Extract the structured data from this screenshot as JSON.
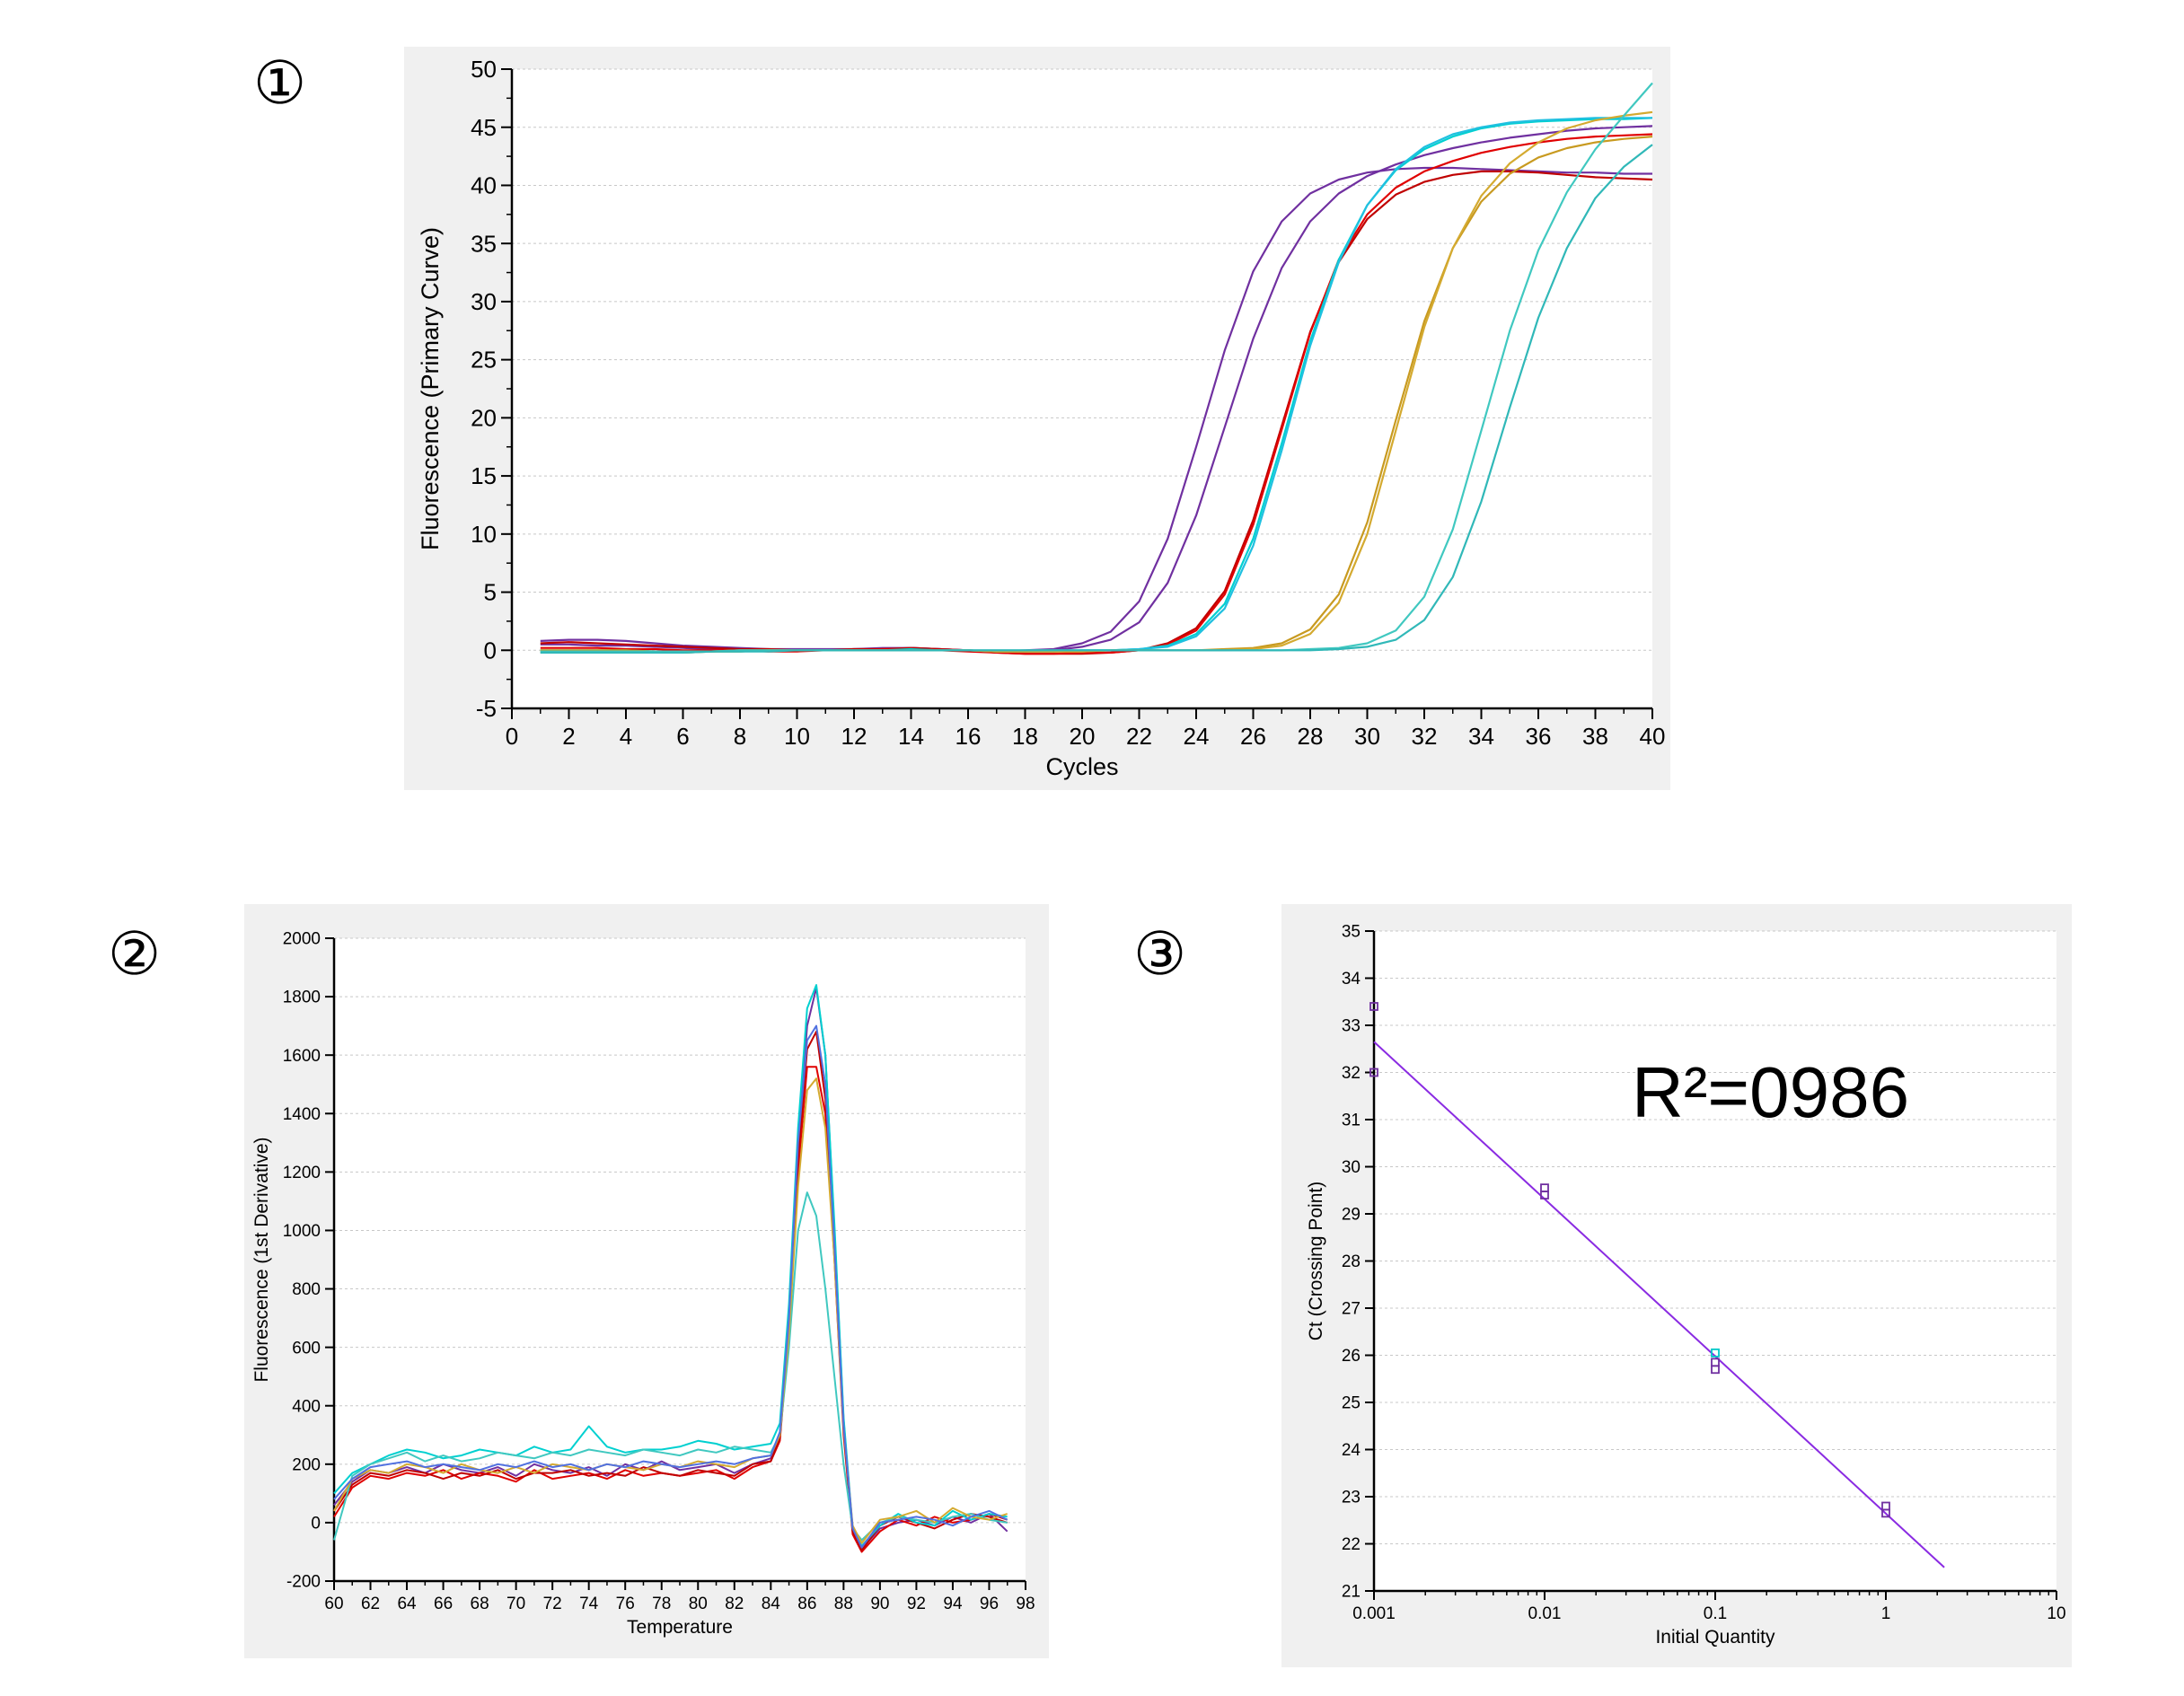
{
  "panels": [
    {
      "number": "①"
    },
    {
      "number": "②"
    },
    {
      "number": "③"
    }
  ],
  "chart_data": [
    {
      "type": "line",
      "title": "",
      "xlabel": "Cycles",
      "ylabel": "Fluorescence (Primary Curve)",
      "xlim": [
        0,
        40
      ],
      "ylim": [
        -5,
        50
      ],
      "xticks": [
        0,
        2,
        4,
        6,
        8,
        10,
        12,
        14,
        16,
        18,
        20,
        22,
        24,
        26,
        28,
        30,
        32,
        34,
        36,
        38,
        40
      ],
      "yticks": [
        -5,
        0,
        5,
        10,
        15,
        20,
        25,
        30,
        35,
        40,
        45,
        50
      ],
      "grid": true,
      "x": [
        1,
        2,
        3,
        4,
        5,
        6,
        7,
        8,
        9,
        10,
        11,
        12,
        13,
        14,
        15,
        16,
        17,
        18,
        19,
        20,
        21,
        22,
        23,
        24,
        25,
        26,
        27,
        28,
        29,
        30,
        31,
        32,
        33,
        34,
        35,
        36,
        37,
        38,
        39,
        40
      ],
      "series": [
        {
          "color": "#7030a0",
          "values": [
            0.8,
            0.9,
            0.9,
            0.8,
            0.6,
            0.4,
            0.3,
            0.2,
            0.1,
            0.1,
            0.1,
            0.1,
            0.2,
            0.2,
            0.1,
            0,
            -0.1,
            0,
            0.1,
            0.6,
            1.6,
            4.2,
            9.6,
            17.5,
            25.8,
            32.6,
            36.9,
            39.3,
            40.5,
            41.1,
            41.4,
            41.5,
            41.5,
            41.4,
            41.3,
            41.2,
            41.1,
            41.1,
            41.0,
            41.0
          ]
        },
        {
          "color": "#7030a0",
          "values": [
            0.5,
            0.5,
            0.4,
            0.4,
            0.3,
            0.2,
            0.1,
            0.1,
            0,
            0,
            0,
            0.1,
            0.1,
            0.2,
            0.1,
            0,
            -0.2,
            -0.1,
            0,
            0.3,
            0.9,
            2.4,
            5.8,
            11.6,
            19.2,
            26.8,
            32.9,
            36.9,
            39.3,
            40.8,
            41.8,
            42.6,
            43.2,
            43.7,
            44.1,
            44.4,
            44.7,
            44.9,
            45.0,
            45.1
          ]
        },
        {
          "color": "#c00000",
          "values": [
            0.6,
            0.7,
            0.6,
            0.5,
            0.4,
            0.3,
            0.2,
            0.1,
            0.1,
            0,
            0,
            0.1,
            0.1,
            0.2,
            0.1,
            0,
            -0.2,
            -0.3,
            -0.3,
            -0.3,
            -0.2,
            0,
            0.6,
            1.9,
            5.1,
            11.2,
            19.3,
            27.4,
            33.4,
            37.1,
            39.2,
            40.3,
            40.9,
            41.2,
            41.2,
            41.1,
            40.9,
            40.7,
            40.6,
            40.5
          ]
        },
        {
          "color": "#e00000",
          "values": [
            0.2,
            0.2,
            0.2,
            0.1,
            0.1,
            0,
            0,
            0,
            -0.1,
            -0.1,
            0,
            0,
            0.1,
            0.1,
            0,
            -0.1,
            -0.2,
            -0.3,
            -0.3,
            -0.2,
            -0.2,
            0,
            0.5,
            1.7,
            4.8,
            10.8,
            19.0,
            27.3,
            33.6,
            37.5,
            39.8,
            41.2,
            42.1,
            42.8,
            43.3,
            43.7,
            44.0,
            44.2,
            44.3,
            44.4
          ]
        },
        {
          "color": "#00d0d0",
          "values": [
            0.0,
            0.0,
            0,
            0,
            -0.1,
            -0.1,
            -0.1,
            0,
            0,
            0,
            0,
            0,
            0,
            0.1,
            0,
            0,
            -0.1,
            -0.1,
            -0.1,
            0,
            0,
            0.1,
            0.4,
            1.4,
            4.0,
            9.6,
            17.8,
            26.6,
            33.6,
            38.3,
            41.3,
            43.1,
            44.2,
            44.9,
            45.3,
            45.5,
            45.6,
            45.7,
            45.7,
            45.8
          ]
        },
        {
          "color": "#20c0e0",
          "values": [
            -0.2,
            -0.1,
            -0.1,
            -0.1,
            -0.2,
            -0.2,
            -0.1,
            -0.1,
            0,
            0,
            0,
            0,
            0,
            0,
            0,
            0,
            -0.1,
            -0.1,
            -0.1,
            0,
            0,
            0.1,
            0.3,
            1.2,
            3.6,
            9.0,
            17.2,
            26.2,
            33.4,
            38.3,
            41.4,
            43.3,
            44.4,
            45.0,
            45.4,
            45.6,
            45.7,
            45.8,
            45.8,
            45.8
          ]
        },
        {
          "color": "#c89a20",
          "values": [
            0,
            0,
            0,
            0,
            -0.1,
            -0.1,
            -0.1,
            0,
            0,
            0,
            0,
            0,
            0,
            0,
            0,
            0,
            -0.1,
            -0.1,
            -0.1,
            -0.1,
            0,
            0,
            0,
            0,
            0.1,
            0.2,
            0.6,
            1.8,
            4.8,
            11.0,
            19.8,
            28.3,
            34.6,
            38.6,
            41.0,
            42.4,
            43.2,
            43.7,
            44.0,
            44.2
          ]
        },
        {
          "color": "#d4aa30",
          "values": [
            -0.1,
            -0.1,
            -0.1,
            -0.1,
            -0.2,
            -0.2,
            -0.1,
            -0.1,
            0,
            0,
            0,
            0,
            0,
            0,
            0,
            0,
            -0.1,
            -0.1,
            -0.1,
            -0.1,
            0,
            0,
            0,
            0,
            0,
            0.1,
            0.4,
            1.4,
            4.1,
            10.0,
            18.9,
            27.8,
            34.6,
            39.1,
            41.9,
            43.7,
            44.9,
            45.6,
            46.0,
            46.3
          ]
        },
        {
          "color": "#40c8c0",
          "values": [
            -0.1,
            -0.1,
            -0.1,
            -0.1,
            -0.1,
            -0.1,
            -0.1,
            0,
            0,
            0,
            0,
            0,
            0,
            0,
            0,
            0,
            0,
            0,
            0,
            0,
            0,
            0,
            0,
            0,
            0,
            0,
            0,
            0.1,
            0.2,
            0.6,
            1.7,
            4.6,
            10.4,
            18.9,
            27.5,
            34.4,
            39.4,
            43.1,
            46.0,
            48.8
          ]
        },
        {
          "color": "#30b8b8",
          "values": [
            -0.2,
            -0.2,
            -0.2,
            -0.2,
            -0.2,
            -0.2,
            -0.1,
            -0.1,
            -0.1,
            0,
            0,
            0,
            0,
            0,
            0,
            0,
            0,
            0,
            0,
            0,
            0,
            0,
            0,
            0,
            0,
            0,
            0,
            0,
            0.1,
            0.3,
            0.9,
            2.6,
            6.3,
            12.8,
            20.9,
            28.6,
            34.6,
            38.9,
            41.6,
            43.5
          ]
        }
      ]
    },
    {
      "type": "line",
      "title": "",
      "xlabel": "Temperature",
      "ylabel": "Fluorescence (1st Derivative)",
      "xlim": [
        60,
        98
      ],
      "ylim": [
        -200,
        2000
      ],
      "xticks": [
        60,
        62,
        64,
        66,
        68,
        70,
        72,
        74,
        76,
        78,
        80,
        82,
        84,
        86,
        88,
        90,
        92,
        94,
        96,
        98
      ],
      "yticks": [
        -200,
        0,
        200,
        400,
        600,
        800,
        1000,
        1200,
        1400,
        1600,
        1800,
        2000
      ],
      "grid": true,
      "x": [
        60,
        61,
        62,
        63,
        64,
        65,
        66,
        67,
        68,
        69,
        70,
        71,
        72,
        73,
        74,
        75,
        76,
        77,
        78,
        79,
        80,
        81,
        82,
        83,
        84,
        84.5,
        85,
        85.5,
        86,
        86.5,
        87,
        87.5,
        88,
        88.5,
        89,
        90,
        91,
        92,
        93,
        94,
        95,
        96,
        97
      ],
      "series": [
        {
          "color": "#7030a0",
          "values": [
            60,
            140,
            180,
            170,
            190,
            170,
            200,
            180,
            170,
            190,
            160,
            200,
            180,
            170,
            190,
            160,
            200,
            180,
            210,
            180,
            190,
            200,
            170,
            200,
            220,
            300,
            700,
            1300,
            1700,
            1830,
            1600,
            1000,
            350,
            -30,
            -90,
            -20,
            0,
            10,
            -10,
            20,
            0,
            30,
            -30
          ]
        },
        {
          "color": "#e00000",
          "values": [
            20,
            120,
            160,
            150,
            170,
            160,
            180,
            150,
            170,
            160,
            140,
            180,
            150,
            160,
            170,
            150,
            180,
            160,
            170,
            160,
            170,
            180,
            150,
            190,
            210,
            280,
            650,
            1200,
            1560,
            1560,
            1400,
            900,
            300,
            -40,
            -100,
            -30,
            10,
            -10,
            20,
            0,
            10,
            30,
            10
          ]
        },
        {
          "color": "#c00000",
          "values": [
            40,
            130,
            170,
            160,
            180,
            170,
            150,
            170,
            160,
            180,
            150,
            170,
            170,
            180,
            160,
            170,
            160,
            190,
            170,
            160,
            180,
            170,
            160,
            200,
            210,
            290,
            680,
            1250,
            1620,
            1680,
            1450,
            950,
            320,
            -30,
            -95,
            -10,
            20,
            0,
            -20,
            10,
            30,
            20,
            0
          ]
        },
        {
          "color": "#00d0d0",
          "values": [
            100,
            170,
            200,
            230,
            250,
            240,
            220,
            230,
            250,
            240,
            230,
            260,
            240,
            250,
            330,
            260,
            240,
            250,
            250,
            260,
            280,
            270,
            250,
            260,
            270,
            340,
            750,
            1350,
            1760,
            1840,
            1600,
            1020,
            360,
            -20,
            -80,
            -10,
            30,
            0,
            -10,
            40,
            10,
            30,
            20
          ]
        },
        {
          "color": "#40c8c0",
          "values": [
            -60,
            160,
            200,
            220,
            240,
            210,
            230,
            210,
            220,
            240,
            230,
            220,
            240,
            230,
            250,
            240,
            230,
            250,
            240,
            230,
            250,
            240,
            260,
            250,
            240,
            300,
            600,
            1000,
            1130,
            1050,
            800,
            500,
            200,
            -20,
            -60,
            0,
            20,
            10,
            0,
            20,
            30,
            10,
            0
          ]
        },
        {
          "color": "#d4aa30",
          "values": [
            40,
            150,
            180,
            170,
            200,
            190,
            170,
            200,
            180,
            170,
            190,
            170,
            200,
            190,
            180,
            200,
            190,
            180,
            200,
            190,
            210,
            200,
            190,
            220,
            230,
            300,
            650,
            1150,
            1480,
            1520,
            1350,
            900,
            320,
            -10,
            -70,
            10,
            20,
            40,
            0,
            50,
            20,
            10,
            30
          ]
        },
        {
          "color": "#5070e0",
          "values": [
            80,
            150,
            190,
            200,
            210,
            190,
            200,
            190,
            180,
            200,
            190,
            210,
            190,
            200,
            180,
            200,
            190,
            210,
            200,
            190,
            200,
            210,
            200,
            220,
            230,
            310,
            700,
            1300,
            1650,
            1700,
            1500,
            950,
            330,
            -20,
            -85,
            0,
            10,
            20,
            10,
            -10,
            20,
            40,
            10
          ]
        }
      ]
    },
    {
      "type": "scatter",
      "title": "",
      "xlabel": "Initial Quantity",
      "ylabel": "Ct (Crossing Point)",
      "xscale": "log",
      "xlim": [
        0.001,
        10
      ],
      "ylim": [
        21,
        35
      ],
      "xticks": [
        "0.001",
        "0.01",
        "0.1",
        "1",
        "10"
      ],
      "yticks": [
        21,
        22,
        23,
        24,
        25,
        26,
        27,
        28,
        29,
        30,
        31,
        32,
        33,
        34,
        35
      ],
      "grid": true,
      "annotation": "R²=0986",
      "points": [
        {
          "x": 0.001,
          "y": 33.4,
          "color": "#7030a0"
        },
        {
          "x": 0.001,
          "y": 32.0,
          "color": "#7030a0"
        },
        {
          "x": 0.01,
          "y": 29.55,
          "color": "#7030a0"
        },
        {
          "x": 0.01,
          "y": 29.4,
          "color": "#7030a0"
        },
        {
          "x": 0.1,
          "y": 26.05,
          "color": "#00c8c8"
        },
        {
          "x": 0.1,
          "y": 25.85,
          "color": "#7030a0"
        },
        {
          "x": 0.1,
          "y": 25.7,
          "color": "#7030a0"
        },
        {
          "x": 1,
          "y": 22.8,
          "color": "#7030a0"
        },
        {
          "x": 1,
          "y": 22.65,
          "color": "#7030a0"
        }
      ],
      "fit_line": {
        "x": [
          0.001,
          2.2
        ],
        "y": [
          32.65,
          21.5
        ],
        "color": "#8a2be2"
      }
    }
  ]
}
